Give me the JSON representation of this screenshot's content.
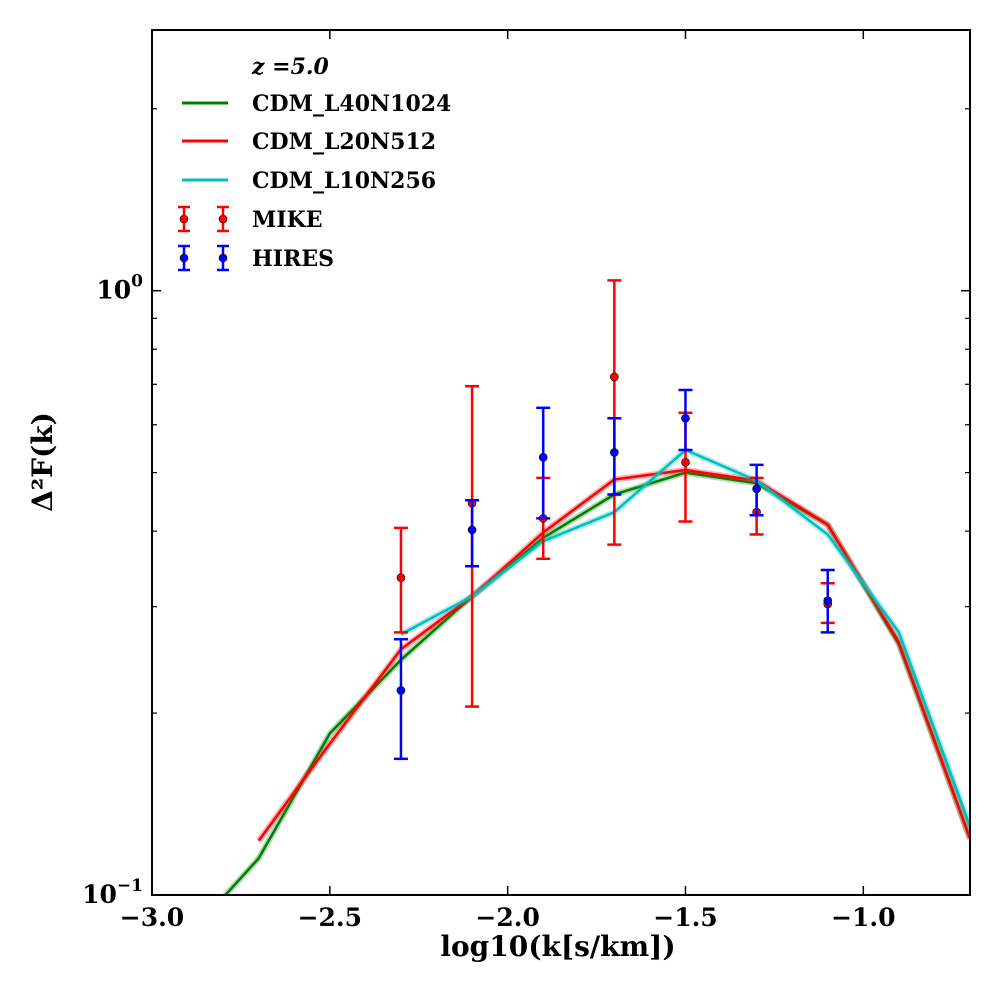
{
  "chart_data": {
    "type": "line",
    "xlabel": "log10(k[s/km])",
    "ylabel": "Δ²F(k)",
    "xlim": [
      -3.0,
      -0.7
    ],
    "ylim": [
      0.1,
      2.7
    ],
    "yscale": "log",
    "grid": false,
    "legend_position": "top-left",
    "legend_title": "z =5.0",
    "x_ticks": [
      -3.0,
      -2.5,
      -2.0,
      -1.5,
      -1.0
    ],
    "x_tick_labels": [
      "−3.0",
      "−2.5",
      "−2.0",
      "−1.5",
      "−1.0"
    ],
    "y_major_ticks": [
      0.1,
      1.0
    ],
    "y_tick_labels": [
      {
        "base": "10",
        "exp": "−1"
      },
      {
        "base": "10",
        "exp": "0"
      }
    ],
    "series": [
      {
        "name": "CDM_L40N1024",
        "kind": "line",
        "color": "#008000",
        "x": [
          -2.9,
          -2.8,
          -2.7,
          -2.5,
          -2.3,
          -2.1,
          -1.9,
          -1.7,
          -1.5,
          -1.3,
          -1.1,
          -0.9,
          -0.7
        ],
        "y": [
          0.085,
          0.099,
          0.115,
          0.185,
          0.245,
          0.312,
          0.39,
          0.46,
          0.5,
          0.48,
          0.41,
          0.26,
          0.124
        ]
      },
      {
        "name": "CDM_L20N512",
        "kind": "line",
        "color": "#ff0000",
        "x": [
          -2.7,
          -2.5,
          -2.3,
          -2.1,
          -1.9,
          -1.7,
          -1.5,
          -1.3,
          -1.1,
          -0.9,
          -0.7
        ],
        "y": [
          0.123,
          0.178,
          0.255,
          0.312,
          0.398,
          0.487,
          0.505,
          0.485,
          0.41,
          0.262,
          0.124
        ]
      },
      {
        "name": "CDM_L10N256",
        "kind": "line",
        "color": "#00bfbf",
        "x": [
          -2.3,
          -2.1,
          -1.9,
          -1.7,
          -1.5,
          -1.3,
          -1.1,
          -0.9,
          -0.7
        ],
        "y": [
          0.27,
          0.312,
          0.385,
          0.43,
          0.545,
          0.485,
          0.395,
          0.272,
          0.13
        ]
      },
      {
        "name": "MIKE",
        "kind": "errorbar",
        "color": "#ff0000",
        "x": [
          -2.3,
          -2.1,
          -1.9,
          -1.7,
          -1.5,
          -1.3,
          -1.1
        ],
        "y": [
          0.335,
          0.445,
          0.42,
          0.72,
          0.52,
          0.43,
          0.303
        ],
        "yerr_low": [
          0.272,
          0.205,
          0.36,
          0.38,
          0.415,
          0.395,
          0.282
        ],
        "yerr_high": [
          0.405,
          0.695,
          0.49,
          1.04,
          0.628,
          0.49,
          0.328
        ]
      },
      {
        "name": "HIRES",
        "kind": "errorbar",
        "color": "#0000ff",
        "x": [
          -2.3,
          -2.1,
          -1.9,
          -1.7,
          -1.5,
          -1.3,
          -1.1
        ],
        "y": [
          0.218,
          0.402,
          0.53,
          0.54,
          0.615,
          0.47,
          0.307
        ],
        "yerr_low": [
          0.168,
          0.35,
          0.42,
          0.46,
          0.545,
          0.425,
          0.272
        ],
        "yerr_high": [
          0.265,
          0.45,
          0.64,
          0.615,
          0.685,
          0.515,
          0.345
        ]
      }
    ]
  }
}
